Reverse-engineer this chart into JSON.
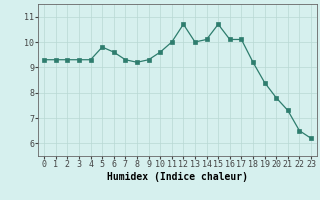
{
  "x": [
    0,
    1,
    2,
    3,
    4,
    5,
    6,
    7,
    8,
    9,
    10,
    11,
    12,
    13,
    14,
    15,
    16,
    17,
    18,
    19,
    20,
    21,
    22,
    23
  ],
  "y": [
    9.3,
    9.3,
    9.3,
    9.3,
    9.3,
    9.8,
    9.6,
    9.3,
    9.2,
    9.3,
    9.6,
    10.0,
    10.7,
    10.0,
    10.1,
    10.7,
    10.1,
    10.1,
    9.2,
    8.4,
    7.8,
    7.3,
    6.5,
    6.2
  ],
  "line_color": "#2e7d6e",
  "marker": "s",
  "marker_size": 2.5,
  "bg_color": "#d6f0ee",
  "grid_color": "#b8d8d4",
  "xlabel": "Humidex (Indice chaleur)",
  "xlabel_fontsize": 7,
  "tick_fontsize": 6,
  "ylim": [
    5.5,
    11.5
  ],
  "xlim": [
    -0.5,
    23.5
  ],
  "yticks": [
    6,
    7,
    8,
    9,
    10,
    11
  ],
  "xticks": [
    0,
    1,
    2,
    3,
    4,
    5,
    6,
    7,
    8,
    9,
    10,
    11,
    12,
    13,
    14,
    15,
    16,
    17,
    18,
    19,
    20,
    21,
    22,
    23
  ],
  "spine_color": "#666666",
  "tick_color": "#444444"
}
